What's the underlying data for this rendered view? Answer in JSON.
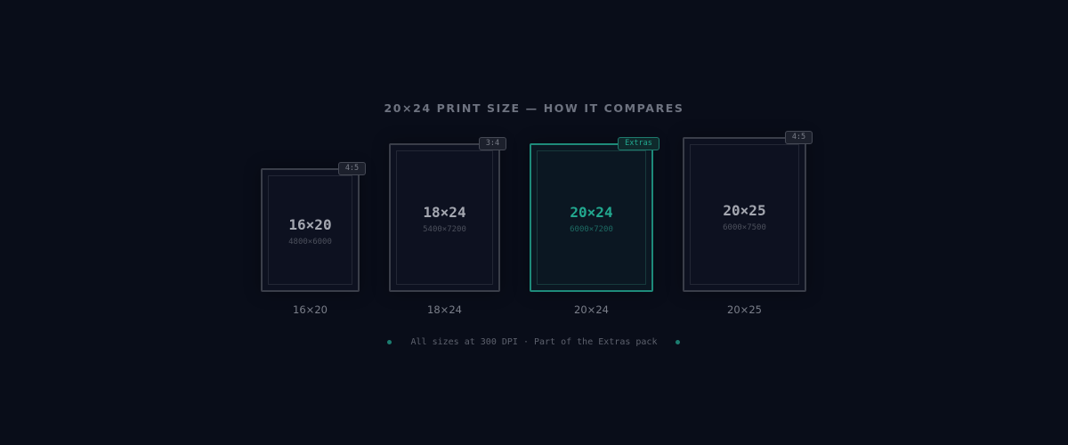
{
  "title": "20×24 PRINT SIZE — HOW IT COMPARES",
  "accent_color": "#22a88f",
  "sizes": [
    {
      "size": "16×20",
      "pixels": "4800×6000",
      "badge": "4:5",
      "label": "16×20",
      "active": false
    },
    {
      "size": "18×24",
      "pixels": "5400×7200",
      "badge": "3:4",
      "label": "18×24",
      "active": false
    },
    {
      "size": "20×24",
      "pixels": "6000×7200",
      "badge": "Extras",
      "label": "20×24",
      "active": true
    },
    {
      "size": "20×25",
      "pixels": "6000×7500",
      "badge": "4:5",
      "label": "20×25",
      "active": false
    }
  ],
  "footer": "All sizes at 300 DPI · Part of the Extras pack"
}
